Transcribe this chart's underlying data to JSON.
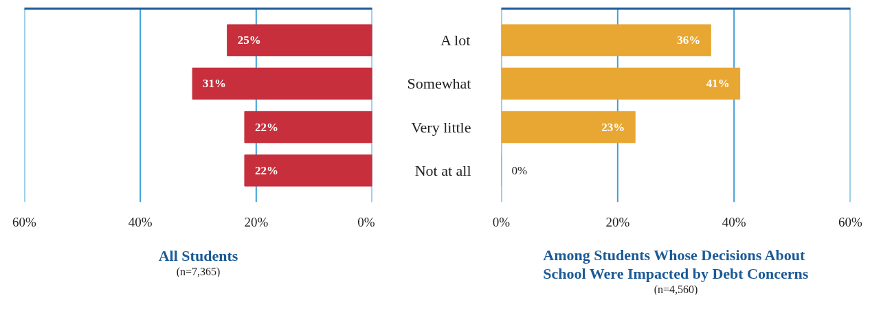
{
  "chart_data": [
    {
      "type": "bar",
      "orientation": "horizontal",
      "title": "All Students",
      "subtitle": "(n=7,365)",
      "categories": [
        null,
        null,
        null,
        null
      ],
      "tick_labels": "x",
      "values": [
        25,
        31,
        22,
        22
      ],
      "value_labels": [
        "25%",
        "31%",
        "22%",
        "22%"
      ],
      "color": "#c62f3b",
      "xlim": [
        60,
        0
      ],
      "xticks": [
        {
          "value": 60,
          "label": "60%"
        },
        {
          "value": 40,
          "label": "40%"
        },
        {
          "value": 20,
          "label": "20%"
        },
        {
          "value": 0,
          "label": "0%"
        }
      ],
      "grid": "x"
    },
    {
      "type": "bar",
      "orientation": "horizontal",
      "title": "Among Students Whose Decisions About School Were Impacted by Debt Concerns",
      "subtitle": "(n=4,560)",
      "categories": [
        "A lot",
        "Somewhat",
        "Very little",
        "Not at all"
      ],
      "values": [
        36,
        41,
        23,
        0
      ],
      "value_labels": [
        "36%",
        "41%",
        "23%",
        "0%"
      ],
      "color": "#e8a733",
      "xlim": [
        0,
        60
      ],
      "xticks": [
        {
          "value": 0,
          "label": "0%"
        },
        {
          "value": 20,
          "label": "20%"
        },
        {
          "value": 40,
          "label": "40%"
        },
        {
          "value": 60,
          "label": "60%"
        }
      ],
      "grid": "x"
    }
  ]
}
